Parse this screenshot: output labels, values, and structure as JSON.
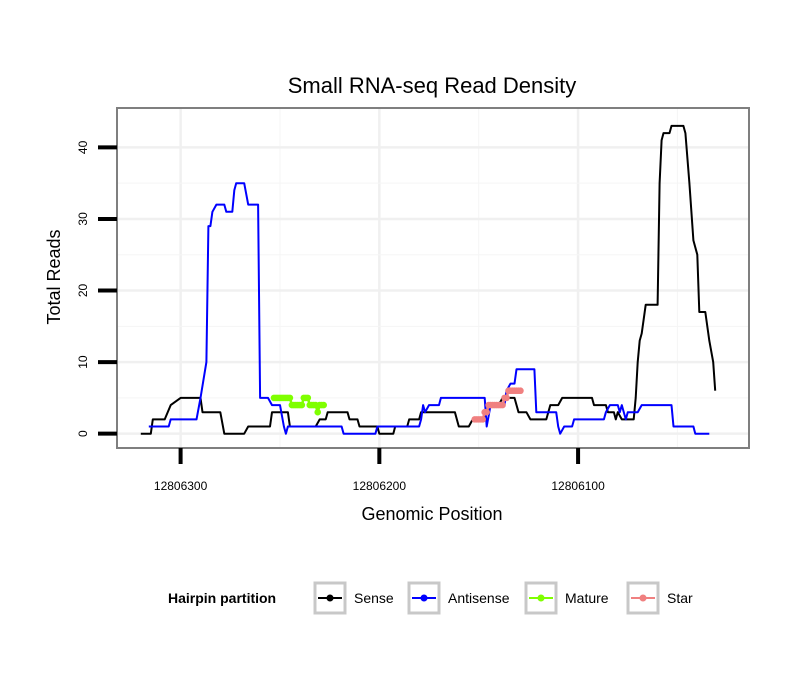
{
  "chart_data": {
    "type": "line",
    "title": "Small RNA-seq Read Density",
    "xlabel": "Genomic Position",
    "ylabel": "Total Reads",
    "xlim": [
      12806332,
      12806014
    ],
    "ylim": [
      -2,
      45.5
    ],
    "x_reversed": true,
    "grid": true,
    "x_ticks": [
      12806300,
      12806200,
      12806100
    ],
    "y_ticks": [
      0,
      10,
      20,
      30,
      40
    ],
    "legend": {
      "title": "Hairpin partition",
      "position": "bottom",
      "entries": [
        "Sense",
        "Antisense",
        "Mature",
        "Star"
      ]
    },
    "series": [
      {
        "name": "Sense",
        "color": "#000000",
        "markers": false,
        "points": [
          [
            12806320,
            0
          ],
          [
            12806315,
            0
          ],
          [
            12806314,
            2
          ],
          [
            12806308,
            2
          ],
          [
            12806305,
            4
          ],
          [
            12806300,
            5
          ],
          [
            12806290,
            5
          ],
          [
            12806289,
            3
          ],
          [
            12806280,
            3
          ],
          [
            12806278,
            0
          ],
          [
            12806268,
            0
          ],
          [
            12806266,
            1
          ],
          [
            12806255,
            1
          ],
          [
            12806254,
            3
          ],
          [
            12806246,
            3
          ],
          [
            12806245,
            1
          ],
          [
            12806232,
            1
          ],
          [
            12806230,
            2
          ],
          [
            12806227,
            2
          ],
          [
            12806226,
            3
          ],
          [
            12806216,
            3
          ],
          [
            12806215,
            2
          ],
          [
            12806211,
            2
          ],
          [
            12806210,
            1
          ],
          [
            12806201,
            1
          ],
          [
            12806200,
            0
          ],
          [
            12806193,
            0
          ],
          [
            12806192,
            1
          ],
          [
            12806186,
            1
          ],
          [
            12806185,
            2
          ],
          [
            12806180,
            2
          ],
          [
            12806179,
            3
          ],
          [
            12806162,
            3
          ],
          [
            12806160,
            1
          ],
          [
            12806155,
            1
          ],
          [
            12806153,
            2
          ],
          [
            12806148,
            2
          ],
          [
            12806146,
            3
          ],
          [
            12806144,
            4
          ],
          [
            12806140,
            4
          ],
          [
            12806138,
            5
          ],
          [
            12806132,
            5
          ],
          [
            12806130,
            3
          ],
          [
            12806126,
            3
          ],
          [
            12806124,
            2
          ],
          [
            12806116,
            2
          ],
          [
            12806114,
            4
          ],
          [
            12806110,
            4
          ],
          [
            12806108,
            5
          ],
          [
            12806093,
            5
          ],
          [
            12806092,
            4
          ],
          [
            12806086,
            4
          ],
          [
            12806085,
            3
          ],
          [
            12806082,
            3
          ],
          [
            12806081,
            2
          ],
          [
            12806080,
            3
          ],
          [
            12806078,
            2
          ],
          [
            12806072,
            2
          ],
          [
            12806071,
            5
          ],
          [
            12806070,
            10
          ],
          [
            12806069,
            13
          ],
          [
            12806068,
            14
          ],
          [
            12806066,
            18
          ],
          [
            12806060,
            18
          ],
          [
            12806059,
            35
          ],
          [
            12806058,
            41
          ],
          [
            12806057,
            42
          ],
          [
            12806054,
            42
          ],
          [
            12806053,
            43
          ],
          [
            12806047,
            43
          ],
          [
            12806046,
            42
          ],
          [
            12806044,
            35
          ],
          [
            12806042,
            27
          ],
          [
            12806040,
            25
          ],
          [
            12806039,
            17
          ],
          [
            12806036,
            17
          ],
          [
            12806034,
            13
          ],
          [
            12806032,
            10
          ],
          [
            12806031,
            6
          ]
        ]
      },
      {
        "name": "Antisense",
        "color": "#0000ff",
        "markers": false,
        "points": [
          [
            12806316,
            1
          ],
          [
            12806306,
            1
          ],
          [
            12806305,
            2
          ],
          [
            12806292,
            2
          ],
          [
            12806290,
            5
          ],
          [
            12806287,
            10
          ],
          [
            12806286,
            29
          ],
          [
            12806285,
            29
          ],
          [
            12806284,
            31
          ],
          [
            12806282,
            32
          ],
          [
            12806278,
            32
          ],
          [
            12806277,
            31
          ],
          [
            12806274,
            31
          ],
          [
            12806273,
            34
          ],
          [
            12806272,
            35
          ],
          [
            12806268,
            35
          ],
          [
            12806266,
            32
          ],
          [
            12806261,
            32
          ],
          [
            12806260,
            5
          ],
          [
            12806256,
            5
          ],
          [
            12806254,
            4
          ],
          [
            12806250,
            4
          ],
          [
            12806248,
            1
          ],
          [
            12806247,
            0
          ],
          [
            12806246,
            1
          ],
          [
            12806219,
            1
          ],
          [
            12806218,
            0
          ],
          [
            12806202,
            0
          ],
          [
            12806201,
            1
          ],
          [
            12806180,
            1
          ],
          [
            12806179,
            2
          ],
          [
            12806178,
            4
          ],
          [
            12806177,
            3
          ],
          [
            12806175,
            4
          ],
          [
            12806170,
            4
          ],
          [
            12806169,
            5
          ],
          [
            12806147,
            5
          ],
          [
            12806146,
            1
          ],
          [
            12806144,
            4
          ],
          [
            12806137,
            4
          ],
          [
            12806136,
            6
          ],
          [
            12806134,
            7
          ],
          [
            12806132,
            7
          ],
          [
            12806131,
            9
          ],
          [
            12806122,
            9
          ],
          [
            12806121,
            3
          ],
          [
            12806111,
            3
          ],
          [
            12806110,
            1
          ],
          [
            12806109,
            0
          ],
          [
            12806107,
            1
          ],
          [
            12806103,
            1
          ],
          [
            12806102,
            2
          ],
          [
            12806087,
            2
          ],
          [
            12806086,
            3
          ],
          [
            12806084,
            4
          ],
          [
            12806080,
            4
          ],
          [
            12806079,
            3
          ],
          [
            12806078,
            4
          ],
          [
            12806076,
            2
          ],
          [
            12806075,
            3
          ],
          [
            12806070,
            3
          ],
          [
            12806068,
            4
          ],
          [
            12806053,
            4
          ],
          [
            12806052,
            1
          ],
          [
            12806042,
            1
          ],
          [
            12806041,
            0
          ],
          [
            12806034,
            0
          ]
        ]
      },
      {
        "name": "Mature",
        "color": "#7fff00",
        "markers": true,
        "points": [
          [
            12806253,
            5
          ],
          [
            12806252,
            5
          ],
          [
            12806251,
            5
          ],
          [
            12806250,
            5
          ],
          [
            12806249,
            5
          ],
          [
            12806248,
            5
          ],
          [
            12806247,
            5
          ],
          [
            12806246,
            5
          ],
          [
            12806245,
            5
          ],
          [
            12806244,
            4
          ],
          [
            12806243,
            4
          ],
          [
            12806242,
            4
          ],
          [
            12806241,
            4
          ],
          [
            12806240,
            4
          ],
          [
            12806239,
            4
          ],
          [
            12806238,
            5
          ],
          [
            12806237,
            5
          ],
          [
            12806236,
            5
          ],
          [
            12806235,
            4
          ],
          [
            12806234,
            4
          ],
          [
            12806233,
            4
          ],
          [
            12806232,
            4
          ],
          [
            12806231,
            3
          ],
          [
            12806230,
            4
          ],
          [
            12806229,
            4
          ],
          [
            12806228,
            4
          ]
        ]
      },
      {
        "name": "Star",
        "color": "#f08080",
        "markers": true,
        "points": [
          [
            12806152,
            2
          ],
          [
            12806151,
            2
          ],
          [
            12806150,
            2
          ],
          [
            12806149,
            2
          ],
          [
            12806148,
            2
          ],
          [
            12806147,
            3
          ],
          [
            12806146,
            3
          ],
          [
            12806145,
            4
          ],
          [
            12806144,
            4
          ],
          [
            12806143,
            4
          ],
          [
            12806142,
            4
          ],
          [
            12806141,
            4
          ],
          [
            12806140,
            4
          ],
          [
            12806139,
            4
          ],
          [
            12806138,
            4
          ],
          [
            12806137,
            5
          ],
          [
            12806136,
            5
          ],
          [
            12806135,
            6
          ],
          [
            12806134,
            6
          ],
          [
            12806133,
            6
          ],
          [
            12806132,
            6
          ],
          [
            12806131,
            6
          ],
          [
            12806130,
            6
          ],
          [
            12806129,
            6
          ]
        ]
      }
    ]
  }
}
